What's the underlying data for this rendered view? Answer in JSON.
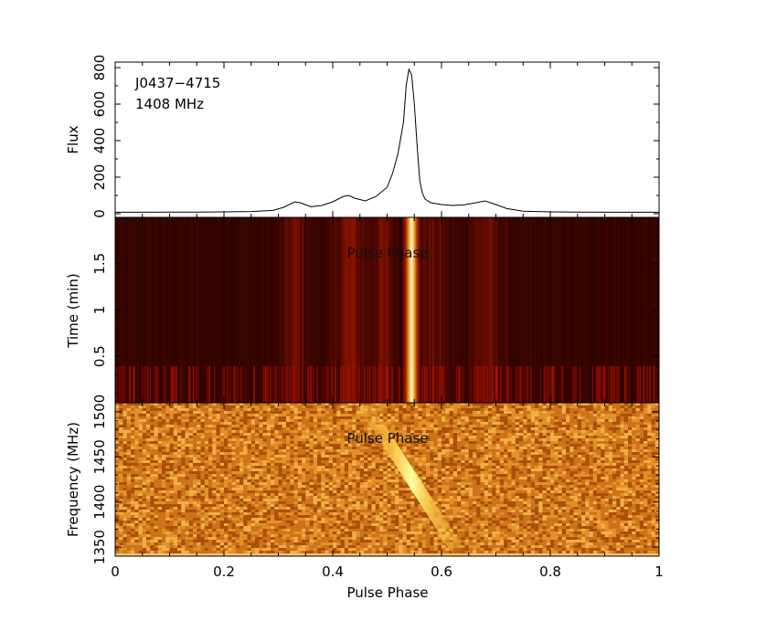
{
  "chart_data": [
    {
      "type": "line",
      "panel": "profile",
      "source_name": "J0437−4715",
      "frequency_label": "1408 MHz",
      "ylabel": "Flux",
      "xlim": [
        0,
        1
      ],
      "ylim": [
        -20,
        830
      ],
      "yticks": [
        0,
        200,
        400,
        600,
        800
      ],
      "x": [
        0.0,
        0.05,
        0.1,
        0.15,
        0.2,
        0.25,
        0.29,
        0.31,
        0.33,
        0.34,
        0.36,
        0.38,
        0.4,
        0.42,
        0.43,
        0.44,
        0.46,
        0.48,
        0.5,
        0.51,
        0.52,
        0.53,
        0.535,
        0.54,
        0.545,
        0.55,
        0.555,
        0.56,
        0.565,
        0.57,
        0.58,
        0.6,
        0.62,
        0.64,
        0.66,
        0.68,
        0.7,
        0.72,
        0.75,
        0.8,
        0.85,
        0.9,
        0.95,
        1.0
      ],
      "y": [
        8,
        8,
        9,
        9,
        10,
        12,
        18,
        35,
        65,
        60,
        38,
        45,
        65,
        95,
        100,
        85,
        70,
        95,
        145,
        220,
        330,
        500,
        700,
        790,
        760,
        600,
        380,
        180,
        110,
        80,
        60,
        50,
        45,
        48,
        58,
        70,
        50,
        28,
        14,
        10,
        9,
        8,
        8,
        8
      ]
    },
    {
      "type": "heatmap",
      "panel": "phase-time",
      "ylabel": "Time (min)",
      "overlay_label": "Pulse Phase",
      "xlim": [
        0,
        1
      ],
      "ylim": [
        0,
        2
      ],
      "yticks": [
        0.5,
        1,
        1.5
      ],
      "pulse_center_phase": 0.545,
      "pulse_half_width": 0.018
    },
    {
      "type": "heatmap",
      "panel": "phase-frequency",
      "ylabel": "Frequency (MHz)",
      "xlabel": "Pulse Phase",
      "overlay_label": "Pulse Phase",
      "xlim": [
        0,
        1
      ],
      "ylim": [
        1340,
        1510
      ],
      "yticks": [
        1350,
        1400,
        1450,
        1500
      ],
      "xticks": [
        0,
        0.2,
        0.4,
        0.6,
        0.8,
        1
      ],
      "xticklabels": [
        "0",
        "0.2",
        "0.4",
        "0.6",
        "0.8",
        "1"
      ],
      "dispersion_track": {
        "phase_at_top": 0.455,
        "phase_at_bottom": 0.635,
        "freq_top": 1510,
        "freq_bottom": 1342
      }
    }
  ],
  "colors": {
    "frame": "#000000",
    "profile_line": "#000000",
    "map_dark": "#1a0000",
    "map_bright": "#ffffe0",
    "noise_base": "#d07a10"
  }
}
